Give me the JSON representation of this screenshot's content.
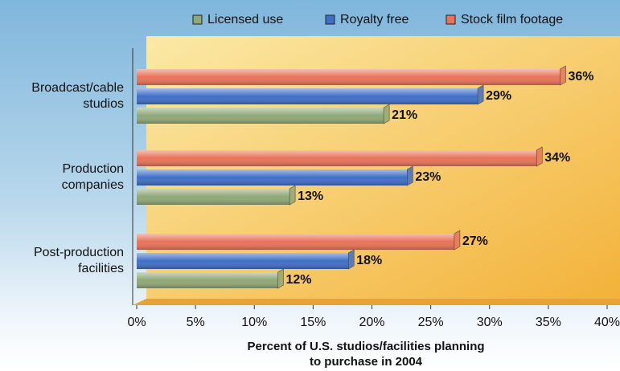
{
  "chart_data": {
    "type": "bar",
    "orientation": "horizontal",
    "categories": [
      "Broadcast/cable studios",
      "Production companies",
      "Post-production facilities"
    ],
    "series": [
      {
        "name": "Licensed use",
        "color": "#8fa877",
        "values": [
          21,
          13,
          12
        ],
        "value_labels": [
          "21%",
          "13%",
          "12%"
        ]
      },
      {
        "name": "Royalty free",
        "color": "#3f6fc6",
        "values": [
          29,
          23,
          18
        ],
        "value_labels": [
          "29%",
          "23%",
          "18%"
        ]
      },
      {
        "name": "Stock film footage",
        "color": "#e8735a",
        "values": [
          36,
          34,
          27
        ],
        "value_labels": [
          "36%",
          "34%",
          "27%"
        ]
      }
    ],
    "xlim": [
      0,
      40
    ],
    "xticks": [
      {
        "value": 0,
        "label": "0%"
      },
      {
        "value": 5,
        "label": "5%"
      },
      {
        "value": 10,
        "label": "10%"
      },
      {
        "value": 15,
        "label": "15%"
      },
      {
        "value": 20,
        "label": "20%"
      },
      {
        "value": 25,
        "label": "25%"
      },
      {
        "value": 30,
        "label": "30%"
      },
      {
        "value": 35,
        "label": "35%"
      },
      {
        "value": 40,
        "label": "40%"
      }
    ],
    "x_label": "Percent of U.S. studios/facilities planning to purchase in 2004",
    "legend": "top"
  }
}
